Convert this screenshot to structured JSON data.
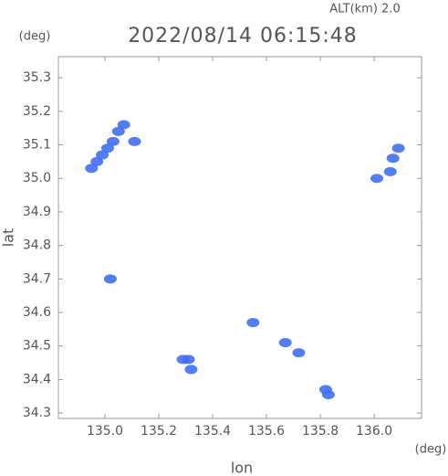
{
  "chart_data": {
    "type": "scatter",
    "altitude_label": "ALT(km) 2.0",
    "title": "2022/08/14 06:15:48",
    "y_unit": "(deg)",
    "x_unit": "(deg)",
    "ylabel": "lat",
    "xlabel": "lon",
    "color": "#3f6ff2",
    "x": [
      134.95,
      134.97,
      134.99,
      135.01,
      135.03,
      135.05,
      135.07,
      135.11,
      135.02,
      136.01,
      136.06,
      136.07,
      136.09,
      135.55,
      135.29,
      135.31,
      135.32,
      135.67,
      135.72,
      135.82,
      135.83
    ],
    "values": [
      35.03,
      35.05,
      35.07,
      35.09,
      35.11,
      35.14,
      35.16,
      35.11,
      34.7,
      35.0,
      35.02,
      35.06,
      35.09,
      34.57,
      34.46,
      34.46,
      34.43,
      34.51,
      34.48,
      34.37,
      34.355
    ],
    "xlim": [
      134.827,
      136.176
    ],
    "ylim": [
      34.284,
      35.363
    ],
    "xticks": [
      {
        "value": 135,
        "label": "135.0"
      },
      135.2,
      135.4,
      135.6,
      135.8,
      {
        "value": 136,
        "label": "136.0"
      }
    ],
    "yticks": [
      34.3,
      34.4,
      34.5,
      34.6,
      34.7,
      34.8,
      34.9,
      {
        "value": 35,
        "label": "35.0"
      },
      35.1,
      35.2,
      35.3
    ]
  }
}
